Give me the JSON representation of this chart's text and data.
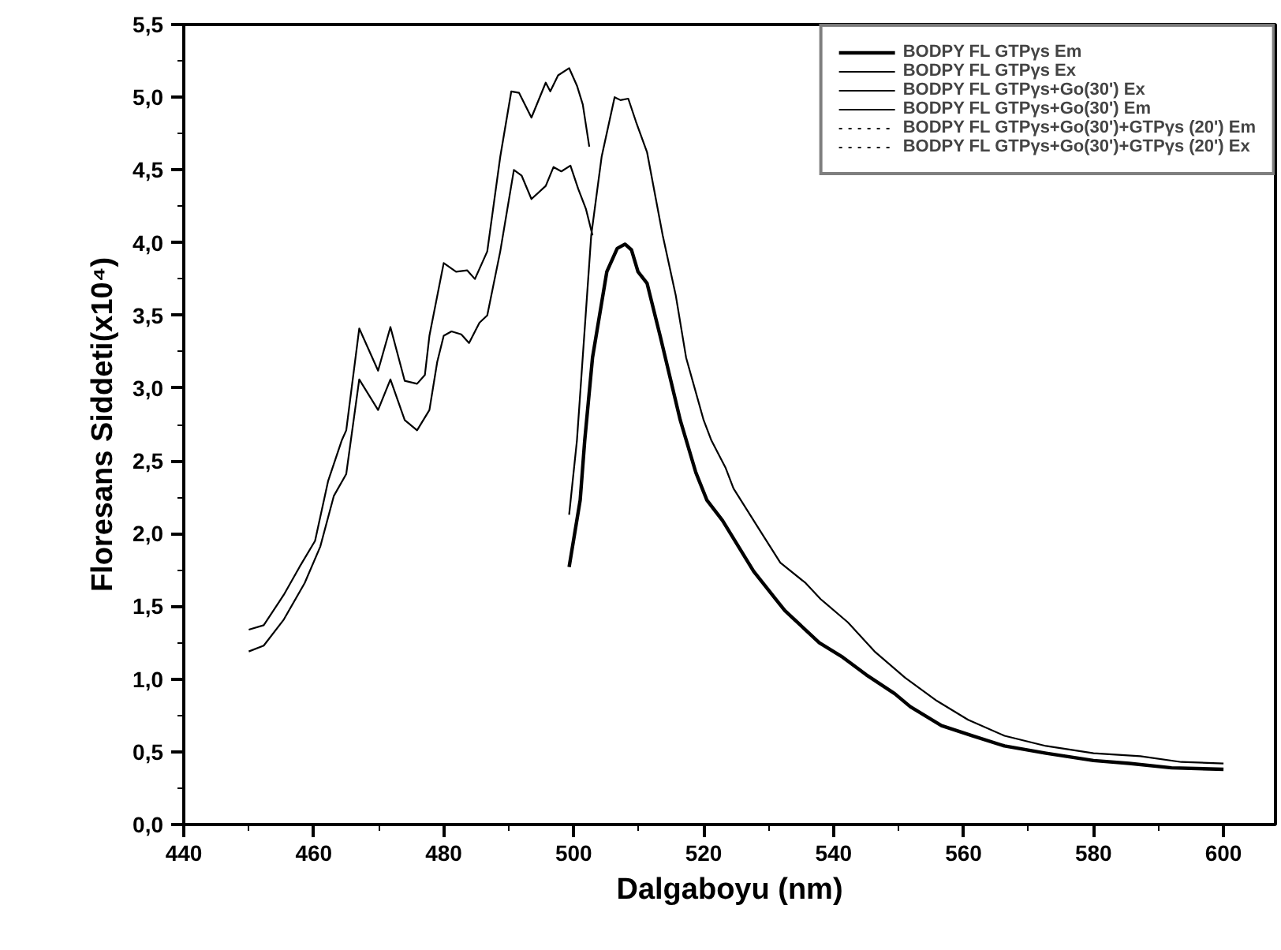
{
  "chart_data": {
    "type": "line",
    "xlabel": "Dalgaboyu (nm)",
    "ylabel": "Floresans Siddeti(x10⁴)",
    "xlim": [
      440,
      608
    ],
    "ylim": [
      0,
      5.5
    ],
    "xticks": [
      440,
      460,
      480,
      500,
      520,
      540,
      560,
      580,
      600
    ],
    "yticks": [
      {
        "value": 0,
        "label": "0,0"
      },
      {
        "value": 0.5,
        "label": "0,5"
      },
      {
        "value": 1,
        "label": "1,0"
      },
      {
        "value": 1.5,
        "label": "1,5"
      },
      {
        "value": 2,
        "label": "2,0"
      },
      {
        "value": 2.5,
        "label": "2,5"
      },
      {
        "value": 3,
        "label": "3,0"
      },
      {
        "value": 3.5,
        "label": "3,5"
      },
      {
        "value": 4,
        "label": "4,0"
      },
      {
        "value": 4.5,
        "label": "4,5"
      },
      {
        "value": 5,
        "label": "5,0"
      },
      {
        "value": 5.5,
        "label": "5,5"
      }
    ],
    "grid": false,
    "legend": "top right",
    "marker": "none",
    "series": [
      {
        "name": "BODPY FL GTPγs Em",
        "color": "#000000",
        "line_style": "solid",
        "x": [
          499.3,
          501,
          501.7,
          502.9,
          505.1,
          506.7,
          507.9,
          508.9,
          509.9,
          511.3,
          513.3,
          516.4,
          518.8,
          520.5,
          522.9,
          527.7,
          532.5,
          537.8,
          541.4,
          545,
          549.4,
          551.8,
          556.6,
          561.4,
          566.3,
          572.7,
          580,
          585.5,
          592,
          600
        ],
        "values": [
          1.77,
          2.23,
          2.64,
          3.21,
          3.8,
          3.96,
          3.99,
          3.95,
          3.8,
          3.72,
          3.36,
          2.78,
          2.42,
          2.23,
          2.09,
          1.74,
          1.47,
          1.25,
          1.15,
          1.03,
          0.9,
          0.81,
          0.68,
          0.61,
          0.54,
          0.49,
          0.44,
          0.42,
          0.39,
          0.38
        ]
      },
      {
        "name": "BODPY FL GTPγs Ex",
        "color": "#000000",
        "line_style": "solid",
        "x": [
          450,
          452.3,
          455.4,
          458.6,
          461,
          463.1,
          465,
          467,
          469.9,
          471.8,
          474,
          475.9,
          477.8,
          479,
          480,
          481.2,
          482.7,
          483.9,
          485.5,
          486.7,
          488.7,
          490.8,
          492,
          493.5,
          495.7,
          496.9,
          498.1,
          499.5,
          500.7,
          501.9,
          502.9
        ],
        "values": [
          1.19,
          1.23,
          1.41,
          1.66,
          1.91,
          2.26,
          2.41,
          3.06,
          2.85,
          3.06,
          2.78,
          2.71,
          2.85,
          3.18,
          3.36,
          3.39,
          3.37,
          3.31,
          3.45,
          3.5,
          3.94,
          4.5,
          4.46,
          4.3,
          4.39,
          4.52,
          4.49,
          4.53,
          4.37,
          4.23,
          4.05
        ]
      },
      {
        "name": "BODPY FL GTPγs+Go(30') Ex",
        "color": "#000000",
        "line_style": "solid",
        "x": [
          450,
          452.3,
          455.4,
          457.8,
          460.2,
          462.2,
          464.3,
          465,
          467,
          469.9,
          471.8,
          474,
          475.9,
          477.1,
          477.8,
          480,
          481.9,
          483.6,
          484.8,
          486.7,
          488.7,
          490.4,
          491.6,
          493.5,
          495.7,
          496.4,
          497.6,
          499.3,
          500.5,
          501.4,
          502.4
        ],
        "values": [
          1.34,
          1.37,
          1.58,
          1.77,
          1.95,
          2.36,
          2.64,
          2.71,
          3.41,
          3.12,
          3.42,
          3.05,
          3.03,
          3.09,
          3.36,
          3.86,
          3.8,
          3.81,
          3.75,
          3.94,
          4.59,
          5.04,
          5.03,
          4.86,
          5.1,
          5.04,
          5.15,
          5.2,
          5.08,
          4.95,
          4.66
        ]
      },
      {
        "name": "BODPY FL GTPγs+Go(30') Em",
        "color": "#000000",
        "line_style": "solid",
        "x": [
          499.3,
          500.5,
          502.7,
          504.3,
          506.3,
          507.2,
          508.4,
          509.6,
          511.3,
          513.7,
          515.7,
          517.3,
          520,
          521.2,
          523.4,
          524.6,
          528.4,
          531.8,
          535.7,
          538,
          542.2,
          546.3,
          551,
          555.9,
          560.7,
          566.3,
          572.7,
          580,
          587.2,
          593.5,
          600
        ],
        "values": [
          2.13,
          2.64,
          4.05,
          4.59,
          5.0,
          4.98,
          4.99,
          4.83,
          4.62,
          4.05,
          3.64,
          3.21,
          2.78,
          2.64,
          2.45,
          2.31,
          2.04,
          1.8,
          1.66,
          1.55,
          1.39,
          1.19,
          1.01,
          0.85,
          0.72,
          0.61,
          0.54,
          0.49,
          0.47,
          0.43,
          0.42
        ]
      },
      {
        "name": "BODPY FL GTPγs+Go(30')+GTPγs (20') Em",
        "color": "#000000",
        "line_style": "dotted",
        "values": [
          null
        ]
      },
      {
        "name": "BODPY FL GTPγs+Go(30')+GTPγs (20') Ex",
        "color": "#000000",
        "line_style": "dotted",
        "values": [
          null
        ]
      }
    ]
  }
}
